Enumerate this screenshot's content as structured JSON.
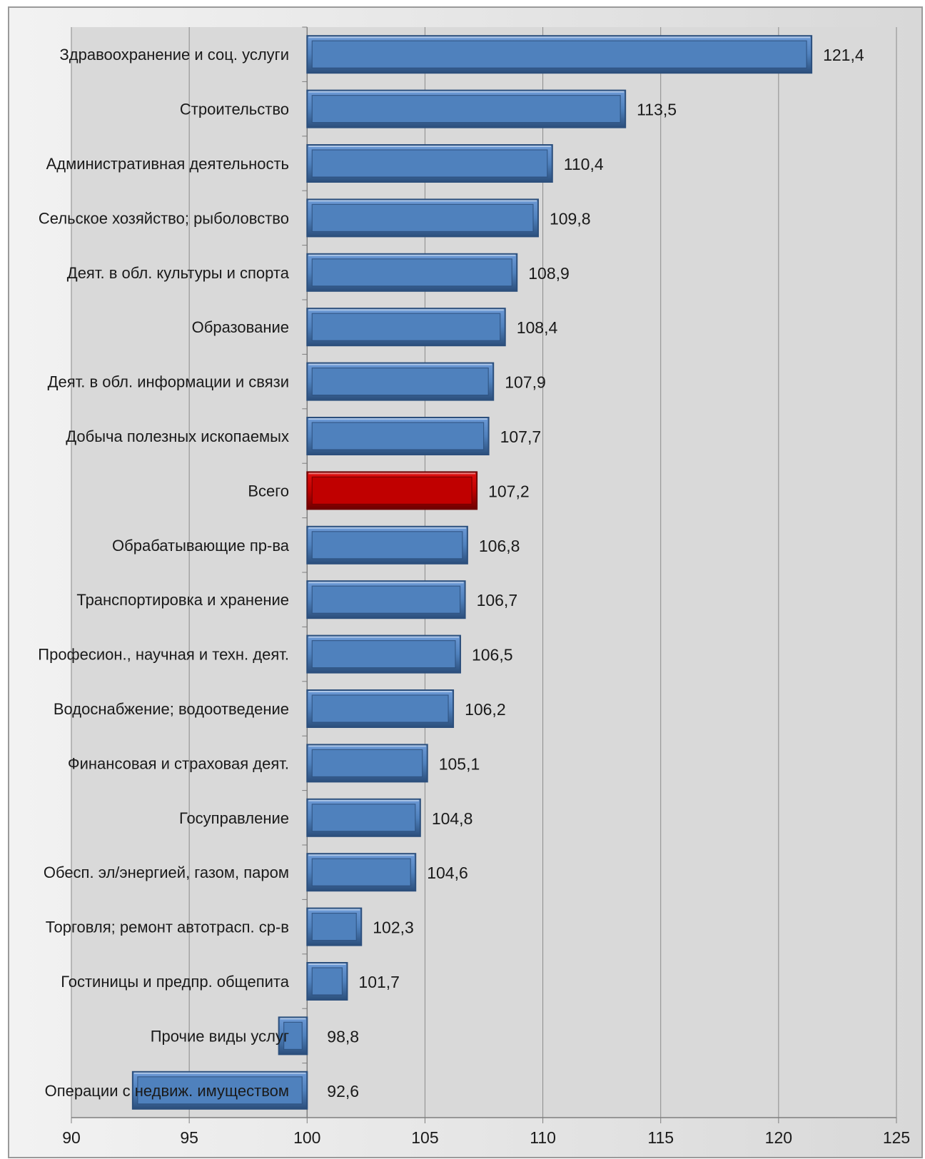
{
  "chart_data": {
    "type": "bar",
    "orientation": "horizontal",
    "baseline": 100,
    "categories": [
      "Здравоохранение и соц. услуги",
      "Строительство",
      "Административная деятельность",
      "Сельское хозяйство; рыболовство",
      "Деят. в обл. культуры и спорта",
      "Образование",
      "Деят. в обл. информации и связи",
      "Добыча полезных ископаемых",
      "Всего",
      "Обрабатывающие пр-ва",
      "Транспортировка и хранение",
      "Професион., научная и техн. деят.",
      "Водоснабжение; водоотведение",
      "Финансовая и страховая деят.",
      "Госуправление",
      "Обесп. эл/энергией, газом, паром",
      "Торговля; ремонт автотрасп. ср-в",
      "Гостиницы и предпр. общепита",
      "Прочие виды услуг",
      "Операции с недвиж. имуществом"
    ],
    "values": [
      121.4,
      113.5,
      110.4,
      109.8,
      108.9,
      108.4,
      107.9,
      107.7,
      107.2,
      106.8,
      106.7,
      106.5,
      106.2,
      105.1,
      104.8,
      104.6,
      102.3,
      101.7,
      98.8,
      92.6
    ],
    "value_labels": [
      "121,4",
      "113,5",
      "110,4",
      "109,8",
      "108,9",
      "108,4",
      "107,9",
      "107,7",
      "107,2",
      "106,8",
      "106,7",
      "106,5",
      "106,2",
      "105,1",
      "104,8",
      "104,6",
      "102,3",
      "101,7",
      "98,8",
      "92,6"
    ],
    "highlight_index": 8,
    "xlim": [
      90,
      125
    ],
    "xticks": [
      90,
      95,
      100,
      105,
      110,
      115,
      120,
      125
    ],
    "grid": true,
    "legend": "none",
    "colors": {
      "bar": "#4f81bd",
      "bar_light": "#6d9ad6",
      "bar_dark": "#2c4f7c",
      "highlight": "#c00000",
      "highlight_light": "#e01010",
      "highlight_dark": "#6e0000",
      "plot_bg": "#d9d9d9",
      "frame_bg": "#ebebeb"
    }
  }
}
